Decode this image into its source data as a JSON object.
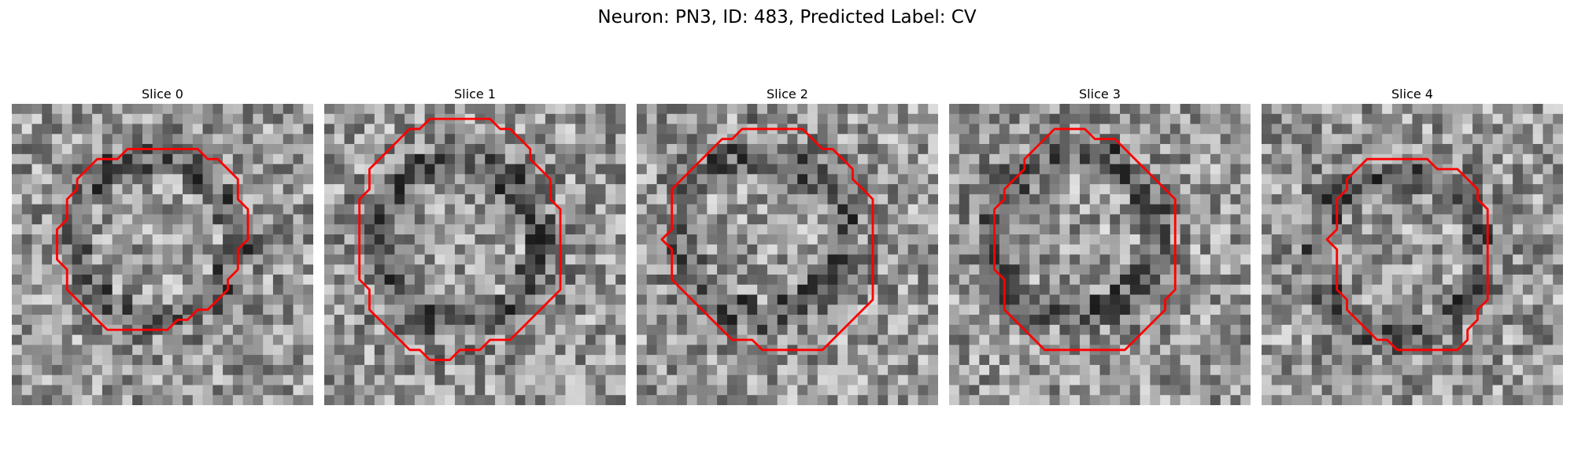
{
  "title": "Neuron: PN3, ID: 483, Predicted Label: CV",
  "contour_color": "#ff0000",
  "panels": [
    {
      "label": "Slice 0",
      "seed": 11,
      "contour": [
        [
          11.5,
          4.5
        ],
        [
          18.5,
          4.5
        ],
        [
          19.5,
          5.5
        ],
        [
          20.5,
          5.5
        ],
        [
          21.5,
          6.5
        ],
        [
          22.5,
          7.5
        ],
        [
          22.5,
          9.5
        ],
        [
          23.5,
          10.5
        ],
        [
          23.5,
          12.5
        ],
        [
          23.5,
          13.5
        ],
        [
          22.5,
          14.5
        ],
        [
          22.5,
          16.5
        ],
        [
          21.5,
          17.5
        ],
        [
          21.5,
          18.5
        ],
        [
          20.5,
          19.5
        ],
        [
          19.5,
          20.5
        ],
        [
          18.5,
          20.5
        ],
        [
          17.5,
          21.5
        ],
        [
          16.5,
          21.5
        ],
        [
          15.5,
          22.5
        ],
        [
          9.5,
          22.5
        ],
        [
          8.5,
          21.5
        ],
        [
          7.5,
          20.5
        ],
        [
          6.5,
          19.5
        ],
        [
          5.5,
          18.5
        ],
        [
          5.5,
          16.5
        ],
        [
          4.5,
          15.5
        ],
        [
          4.5,
          13.5
        ],
        [
          4.5,
          12.5
        ],
        [
          5.5,
          11.5
        ],
        [
          5.5,
          9.5
        ],
        [
          6.5,
          8.5
        ],
        [
          6.5,
          7.5
        ],
        [
          7.5,
          6.5
        ],
        [
          8.5,
          5.5
        ],
        [
          10.5,
          5.5
        ]
      ]
    },
    {
      "label": "Slice 1",
      "seed": 23,
      "contour": [
        [
          10.5,
          1.5
        ],
        [
          16.5,
          1.5
        ],
        [
          17.5,
          2.5
        ],
        [
          18.5,
          2.5
        ],
        [
          19.5,
          3.5
        ],
        [
          20.5,
          4.5
        ],
        [
          20.5,
          5.5
        ],
        [
          21.5,
          6.5
        ],
        [
          22.5,
          7.5
        ],
        [
          22.5,
          9.5
        ],
        [
          23.5,
          10.5
        ],
        [
          23.5,
          18.5
        ],
        [
          22.5,
          19.5
        ],
        [
          21.5,
          20.5
        ],
        [
          20.5,
          21.5
        ],
        [
          19.5,
          22.5
        ],
        [
          18.5,
          23.5
        ],
        [
          16.5,
          23.5
        ],
        [
          15.5,
          24.5
        ],
        [
          13.5,
          24.5
        ],
        [
          12.5,
          25.5
        ],
        [
          10.5,
          25.5
        ],
        [
          9.5,
          24.5
        ],
        [
          8.5,
          24.5
        ],
        [
          7.5,
          23.5
        ],
        [
          6.5,
          22.5
        ],
        [
          5.5,
          21.5
        ],
        [
          4.5,
          20.5
        ],
        [
          4.5,
          18.5
        ],
        [
          3.5,
          17.5
        ],
        [
          3.5,
          9.5
        ],
        [
          4.5,
          8.5
        ],
        [
          4.5,
          6.5
        ],
        [
          5.5,
          5.5
        ],
        [
          6.5,
          4.5
        ],
        [
          7.5,
          3.5
        ],
        [
          8.5,
          2.5
        ],
        [
          9.5,
          2.5
        ]
      ]
    },
    {
      "label": "Slice 2",
      "seed": 37,
      "contour": [
        [
          10.5,
          2.5
        ],
        [
          16.5,
          2.5
        ],
        [
          17.5,
          3.5
        ],
        [
          18.5,
          4.5
        ],
        [
          19.5,
          4.5
        ],
        [
          20.5,
          5.5
        ],
        [
          21.5,
          6.5
        ],
        [
          21.5,
          7.5
        ],
        [
          22.5,
          8.5
        ],
        [
          23.5,
          9.5
        ],
        [
          23.5,
          19.5
        ],
        [
          22.5,
          20.5
        ],
        [
          21.5,
          21.5
        ],
        [
          20.5,
          22.5
        ],
        [
          19.5,
          23.5
        ],
        [
          18.5,
          24.5
        ],
        [
          12.5,
          24.5
        ],
        [
          11.5,
          23.5
        ],
        [
          9.5,
          23.5
        ],
        [
          8.5,
          22.5
        ],
        [
          7.5,
          21.5
        ],
        [
          6.5,
          20.5
        ],
        [
          5.5,
          19.5
        ],
        [
          4.5,
          18.5
        ],
        [
          3.5,
          17.5
        ],
        [
          3.5,
          14.5
        ],
        [
          2.5,
          13.5
        ],
        [
          3.5,
          12.5
        ],
        [
          3.5,
          8.5
        ],
        [
          4.5,
          7.5
        ],
        [
          5.5,
          6.5
        ],
        [
          6.5,
          5.5
        ],
        [
          7.5,
          4.5
        ],
        [
          8.5,
          3.5
        ],
        [
          9.5,
          3.5
        ]
      ]
    },
    {
      "label": "Slice 3",
      "seed": 53,
      "contour": [
        [
          10.5,
          2.5
        ],
        [
          13.5,
          2.5
        ],
        [
          14.5,
          3.5
        ],
        [
          16.5,
          3.5
        ],
        [
          17.5,
          4.5
        ],
        [
          18.5,
          5.5
        ],
        [
          19.5,
          6.5
        ],
        [
          20.5,
          7.5
        ],
        [
          21.5,
          8.5
        ],
        [
          22.5,
          9.5
        ],
        [
          22.5,
          18.5
        ],
        [
          21.5,
          19.5
        ],
        [
          21.5,
          20.5
        ],
        [
          20.5,
          21.5
        ],
        [
          19.5,
          22.5
        ],
        [
          18.5,
          23.5
        ],
        [
          17.5,
          24.5
        ],
        [
          9.5,
          24.5
        ],
        [
          8.5,
          23.5
        ],
        [
          7.5,
          22.5
        ],
        [
          6.5,
          21.5
        ],
        [
          5.5,
          20.5
        ],
        [
          5.5,
          18.5
        ],
        [
          5.5,
          17.5
        ],
        [
          4.5,
          16.5
        ],
        [
          4.5,
          15.5
        ],
        [
          4.5,
          14.5
        ],
        [
          4.5,
          10.5
        ],
        [
          5.5,
          9.5
        ],
        [
          5.5,
          8.5
        ],
        [
          6.5,
          7.5
        ],
        [
          7.5,
          6.5
        ],
        [
          7.5,
          5.5
        ],
        [
          8.5,
          4.5
        ],
        [
          9.5,
          3.5
        ]
      ]
    },
    {
      "label": "Slice 4",
      "seed": 71,
      "contour": [
        [
          10.5,
          5.5
        ],
        [
          16.5,
          5.5
        ],
        [
          17.5,
          6.5
        ],
        [
          19.5,
          6.5
        ],
        [
          20.5,
          7.5
        ],
        [
          21.5,
          8.5
        ],
        [
          21.5,
          9.5
        ],
        [
          22.5,
          10.5
        ],
        [
          22.5,
          19.5
        ],
        [
          21.5,
          20.5
        ],
        [
          21.5,
          21.5
        ],
        [
          20.5,
          22.5
        ],
        [
          20.5,
          23.5
        ],
        [
          19.5,
          24.5
        ],
        [
          13.5,
          24.5
        ],
        [
          12.5,
          23.5
        ],
        [
          11.5,
          23.5
        ],
        [
          10.5,
          22.5
        ],
        [
          9.5,
          21.5
        ],
        [
          8.5,
          20.5
        ],
        [
          8.5,
          19.5
        ],
        [
          7.5,
          18.5
        ],
        [
          7.5,
          16.5
        ],
        [
          7.5,
          14.5
        ],
        [
          6.5,
          13.5
        ],
        [
          7.5,
          12.5
        ],
        [
          7.5,
          11.5
        ],
        [
          7.5,
          9.5
        ],
        [
          8.5,
          8.5
        ],
        [
          8.5,
          7.5
        ],
        [
          9.5,
          6.5
        ]
      ]
    }
  ]
}
